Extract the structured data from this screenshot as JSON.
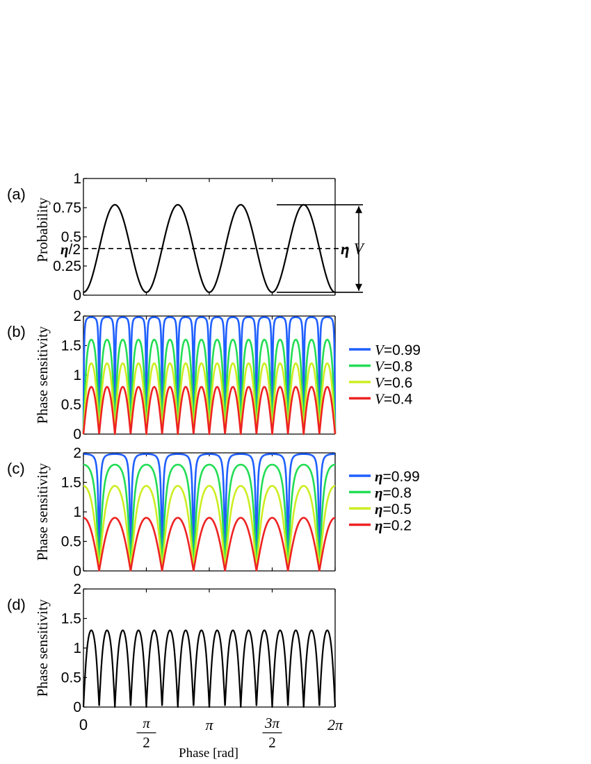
{
  "figure": {
    "xlabel": "Phase [rad]",
    "xticks": [
      {
        "value": 0,
        "num": "0",
        "den": ""
      },
      {
        "value": 1.5708,
        "num": "π",
        "den": "2"
      },
      {
        "value": 3.1416,
        "num": "π",
        "den": ""
      },
      {
        "value": 4.7124,
        "num": "3π",
        "den": "2"
      },
      {
        "value": 6.2832,
        "num": "2π",
        "den": ""
      }
    ]
  },
  "chart_data": [
    {
      "panel_label": "(a)",
      "type": "line",
      "ylabel": "Probability",
      "xlim": [
        0,
        6.2832
      ],
      "ylim": [
        0,
        1
      ],
      "yticks": [
        {
          "value": 0,
          "label": "0"
        },
        {
          "value": 0.25,
          "label": "0.25"
        },
        {
          "value": 0.5,
          "label": "0.5"
        },
        {
          "value": 0.75,
          "label": "0.75"
        },
        {
          "value": 1,
          "label": "1"
        }
      ],
      "mean_marker": {
        "value": 0.4,
        "label_symbol": "η",
        "label_rest": "/2"
      },
      "visibility_annotation": {
        "symbol": "η",
        "text": "V",
        "y_low": 0.025,
        "y_high": 0.775
      },
      "series": [
        {
          "model": "probability",
          "eta": 0.8,
          "V": 0.9375,
          "periods": 4,
          "offset": -1.1781,
          "color": "#000000",
          "width": 2.2,
          "dash": ""
        }
      ]
    },
    {
      "panel_label": "(b)",
      "type": "line",
      "ylabel": "Phase sensitivity",
      "xlim": [
        0,
        6.2832
      ],
      "ylim": [
        0,
        2
      ],
      "yticks": [
        {
          "value": 0,
          "label": "0"
        },
        {
          "value": 0.5,
          "label": "0.5"
        },
        {
          "value": 1,
          "label": "1"
        },
        {
          "value": 1.5,
          "label": "1.5"
        },
        {
          "value": 2,
          "label": "2"
        }
      ],
      "legend": {
        "placement": "right",
        "entries": [
          {
            "symbol": "V",
            "rest": "=0.99",
            "color": "#1f5fff"
          },
          {
            "symbol": "V",
            "rest": "=0.8",
            "color": "#22dd55"
          },
          {
            "symbol": "V",
            "rest": "=0.6",
            "color": "#ccee22"
          },
          {
            "symbol": "V",
            "rest": "=0.4",
            "color": "#ee2222"
          }
        ]
      },
      "series": [
        {
          "model": "sensitivity",
          "V": 0.99,
          "periods": 8,
          "offset": -0.3927,
          "amplitude": 2,
          "color": "#1f5fff",
          "width": 2.6,
          "dash": ""
        },
        {
          "model": "sensitivity",
          "V": 0.8,
          "periods": 8,
          "offset": -0.3927,
          "amplitude": 2,
          "color": "#22dd55",
          "width": 2.6,
          "dash": ""
        },
        {
          "model": "sensitivity",
          "V": 0.6,
          "periods": 8,
          "offset": -0.3927,
          "amplitude": 2,
          "color": "#ccee22",
          "width": 2.6,
          "dash": ""
        },
        {
          "model": "sensitivity",
          "V": 0.4,
          "periods": 8,
          "offset": -0.3927,
          "amplitude": 2,
          "color": "#ee2222",
          "width": 2.6,
          "dash": ""
        }
      ]
    },
    {
      "panel_label": "(c)",
      "type": "line",
      "ylabel": "Phase sensitivity",
      "xlim": [
        0,
        6.2832
      ],
      "ylim": [
        0,
        2
      ],
      "yticks": [
        {
          "value": 0,
          "label": "0"
        },
        {
          "value": 0.5,
          "label": "0.5"
        },
        {
          "value": 1,
          "label": "1"
        },
        {
          "value": 1.5,
          "label": "1.5"
        },
        {
          "value": 2,
          "label": "2"
        }
      ],
      "legend": {
        "placement": "right",
        "entries": [
          {
            "symbol": "η",
            "rest": "=0.99",
            "color": "#1f5fff"
          },
          {
            "symbol": "η",
            "rest": "=0.8",
            "color": "#22dd55"
          },
          {
            "symbol": "η",
            "rest": "=0.5",
            "color": "#ccee22"
          },
          {
            "symbol": "η",
            "rest": "=0.2",
            "color": "#ee2222"
          }
        ]
      },
      "series": [
        {
          "model": "sensitivity",
          "V": 0.99,
          "periods": 4,
          "offset": -0.3927,
          "amplitude": 2,
          "color": "#1f5fff",
          "width": 2.6,
          "dash": ""
        },
        {
          "model": "sensitivity",
          "V": 0.9,
          "periods": 4,
          "offset": -0.3927,
          "amplitude": 2,
          "color": "#22dd55",
          "width": 2.6,
          "dash": ""
        },
        {
          "model": "sensitivity",
          "V": 0.72,
          "periods": 4,
          "offset": -0.3927,
          "amplitude": 2,
          "color": "#ccee22",
          "width": 2.6,
          "dash": ""
        },
        {
          "model": "sensitivity",
          "V": 0.45,
          "periods": 4,
          "offset": -0.3927,
          "amplitude": 2,
          "color": "#ee2222",
          "width": 2.6,
          "dash": ""
        }
      ]
    },
    {
      "panel_label": "(d)",
      "type": "line",
      "ylabel": "Phase sensitivity",
      "xlim": [
        0,
        6.2832
      ],
      "ylim": [
        0,
        2
      ],
      "yticks": [
        {
          "value": 0,
          "label": "0"
        },
        {
          "value": 0.5,
          "label": "0.5"
        },
        {
          "value": 1,
          "label": "1"
        },
        {
          "value": 1.5,
          "label": "1.5"
        },
        {
          "value": 2,
          "label": "2"
        }
      ],
      "series": [
        {
          "model": "sensitivity",
          "V": 0.65,
          "periods": 8,
          "offset": -0.3927,
          "amplitude": 2,
          "color": "#000000",
          "width": 2.2,
          "dash": ""
        }
      ]
    }
  ]
}
